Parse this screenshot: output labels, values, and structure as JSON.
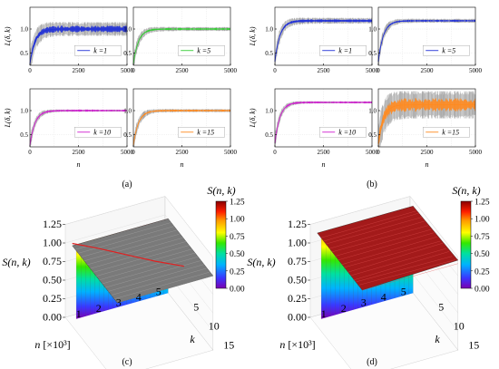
{
  "figure": {
    "labels": [
      "(a)",
      "(b)",
      "(c)",
      "(d)"
    ],
    "colors": {
      "noise": "#bdbdbd",
      "k1": "#1f2fd6",
      "k5": "#33cc33",
      "k10": "#d020d0",
      "k15": "#ff8a1f",
      "sheet_c": "#7a7a7a",
      "sheet_d": "#a31a1a"
    }
  },
  "chart_data": [
    {
      "id": "a1",
      "panel": "(a)",
      "type": "line",
      "ylabel": "L(δ, k)",
      "xlabel": "",
      "x_ticks": [
        "0",
        "2500",
        "5000"
      ],
      "y_ticks": [
        "0.5",
        "1.0"
      ],
      "xlim": [
        0,
        5000
      ],
      "ylim": [
        0.25,
        1.45
      ],
      "legend": "k =1",
      "series_color": "k1",
      "asymptote": 1.0,
      "noise_band": 0.14
    },
    {
      "id": "a2",
      "panel": "(a)",
      "type": "line",
      "ylabel": "",
      "xlabel": "",
      "x_ticks": [
        "0",
        "2500",
        "5000"
      ],
      "y_ticks": [
        "0.5",
        "1.0"
      ],
      "xlim": [
        0,
        5000
      ],
      "ylim": [
        0.25,
        1.45
      ],
      "legend": "k =5",
      "series_color": "k5",
      "asymptote": 1.0,
      "noise_band": 0.04
    },
    {
      "id": "a3",
      "panel": "(a)",
      "type": "line",
      "ylabel": "L(δ, k)",
      "xlabel": "n",
      "x_ticks": [
        "0",
        "2500",
        "5000"
      ],
      "y_ticks": [
        "0.5",
        "1.0"
      ],
      "xlim": [
        0,
        5000
      ],
      "ylim": [
        0.25,
        1.45
      ],
      "legend": "k =10",
      "series_color": "k10",
      "asymptote": 1.0,
      "noise_band": 0.02
    },
    {
      "id": "a4",
      "panel": "(a)",
      "type": "line",
      "ylabel": "",
      "xlabel": "n",
      "x_ticks": [
        "0",
        "2500",
        "5000"
      ],
      "y_ticks": [
        "0.5",
        "1.0"
      ],
      "xlim": [
        0,
        5000
      ],
      "ylim": [
        0.25,
        1.45
      ],
      "legend": "k =15",
      "series_color": "k15",
      "asymptote": 1.0,
      "noise_band": 0.03
    },
    {
      "id": "b1",
      "panel": "(b)",
      "type": "line",
      "ylabel": "L(δ, k)",
      "xlabel": "",
      "x_ticks": [
        "0",
        "2500",
        "5000"
      ],
      "y_ticks": [
        "0.5",
        "1.0"
      ],
      "xlim": [
        0,
        5000
      ],
      "ylim": [
        0.25,
        1.45
      ],
      "legend": "k =1",
      "series_color": "k1",
      "asymptote": 1.17,
      "noise_band": 0.06
    },
    {
      "id": "b2",
      "panel": "(b)",
      "type": "line",
      "ylabel": "",
      "xlabel": "",
      "x_ticks": [
        "0",
        "2500",
        "5000"
      ],
      "y_ticks": [
        "0.5",
        "1.0"
      ],
      "xlim": [
        0,
        5000
      ],
      "ylim": [
        0.25,
        1.45
      ],
      "legend": "k =5",
      "series_color": "k1",
      "asymptote": 1.17,
      "noise_band": 0.04
    },
    {
      "id": "b3",
      "panel": "(b)",
      "type": "line",
      "ylabel": "L(δ, k)",
      "xlabel": "n",
      "x_ticks": [
        "0",
        "2500",
        "5000"
      ],
      "y_ticks": [
        "0.5",
        "1.0"
      ],
      "xlim": [
        0,
        5000
      ],
      "ylim": [
        0.25,
        1.45
      ],
      "legend": "k =10",
      "series_color": "k10",
      "asymptote": 1.17,
      "noise_band": 0.02
    },
    {
      "id": "b4",
      "panel": "(b)",
      "type": "line",
      "ylabel": "",
      "xlabel": "n",
      "x_ticks": [
        "0",
        "2500",
        "5000"
      ],
      "y_ticks": [
        "0.5",
        "1.0"
      ],
      "xlim": [
        0,
        5000
      ],
      "ylim": [
        0.25,
        1.45
      ],
      "legend": "k =15",
      "series_color": "k15",
      "asymptote": 1.12,
      "noise_band": 0.28
    },
    {
      "id": "c",
      "panel": "(c)",
      "type": "surface",
      "zlabel": "S(n, k)",
      "xlabel": "n [×10³]",
      "ylabel": "k",
      "n_ticks": [
        "1",
        "2",
        "3",
        "4",
        "5"
      ],
      "k_ticks": [
        "5",
        "10",
        "15"
      ],
      "z_ticks": [
        "0.00",
        "0.25",
        "0.50",
        "0.75",
        "1.00",
        "1.25"
      ],
      "zlim": [
        0,
        1.25
      ],
      "surface_value": 1.0,
      "colorbar_title": "S(n, k)",
      "colorbar_ticks": [
        "1.25",
        "1.00",
        "0.75",
        "0.50",
        "0.25",
        "0.00"
      ]
    },
    {
      "id": "d",
      "panel": "(d)",
      "type": "surface",
      "zlabel": "S(n, k)",
      "xlabel": "n [×10³]",
      "ylabel": "k",
      "n_ticks": [
        "1",
        "2",
        "3",
        "4",
        "5"
      ],
      "k_ticks": [
        "5",
        "10",
        "15"
      ],
      "z_ticks": [
        "0.00",
        "0.25",
        "0.50",
        "0.75",
        "1.00",
        "1.25"
      ],
      "zlim": [
        0,
        1.25
      ],
      "surface_value": 1.17,
      "colorbar_title": "S(n, k)",
      "colorbar_ticks": [
        "1.25",
        "1.00",
        "0.75",
        "0.50",
        "0.25",
        "0.00"
      ]
    }
  ]
}
